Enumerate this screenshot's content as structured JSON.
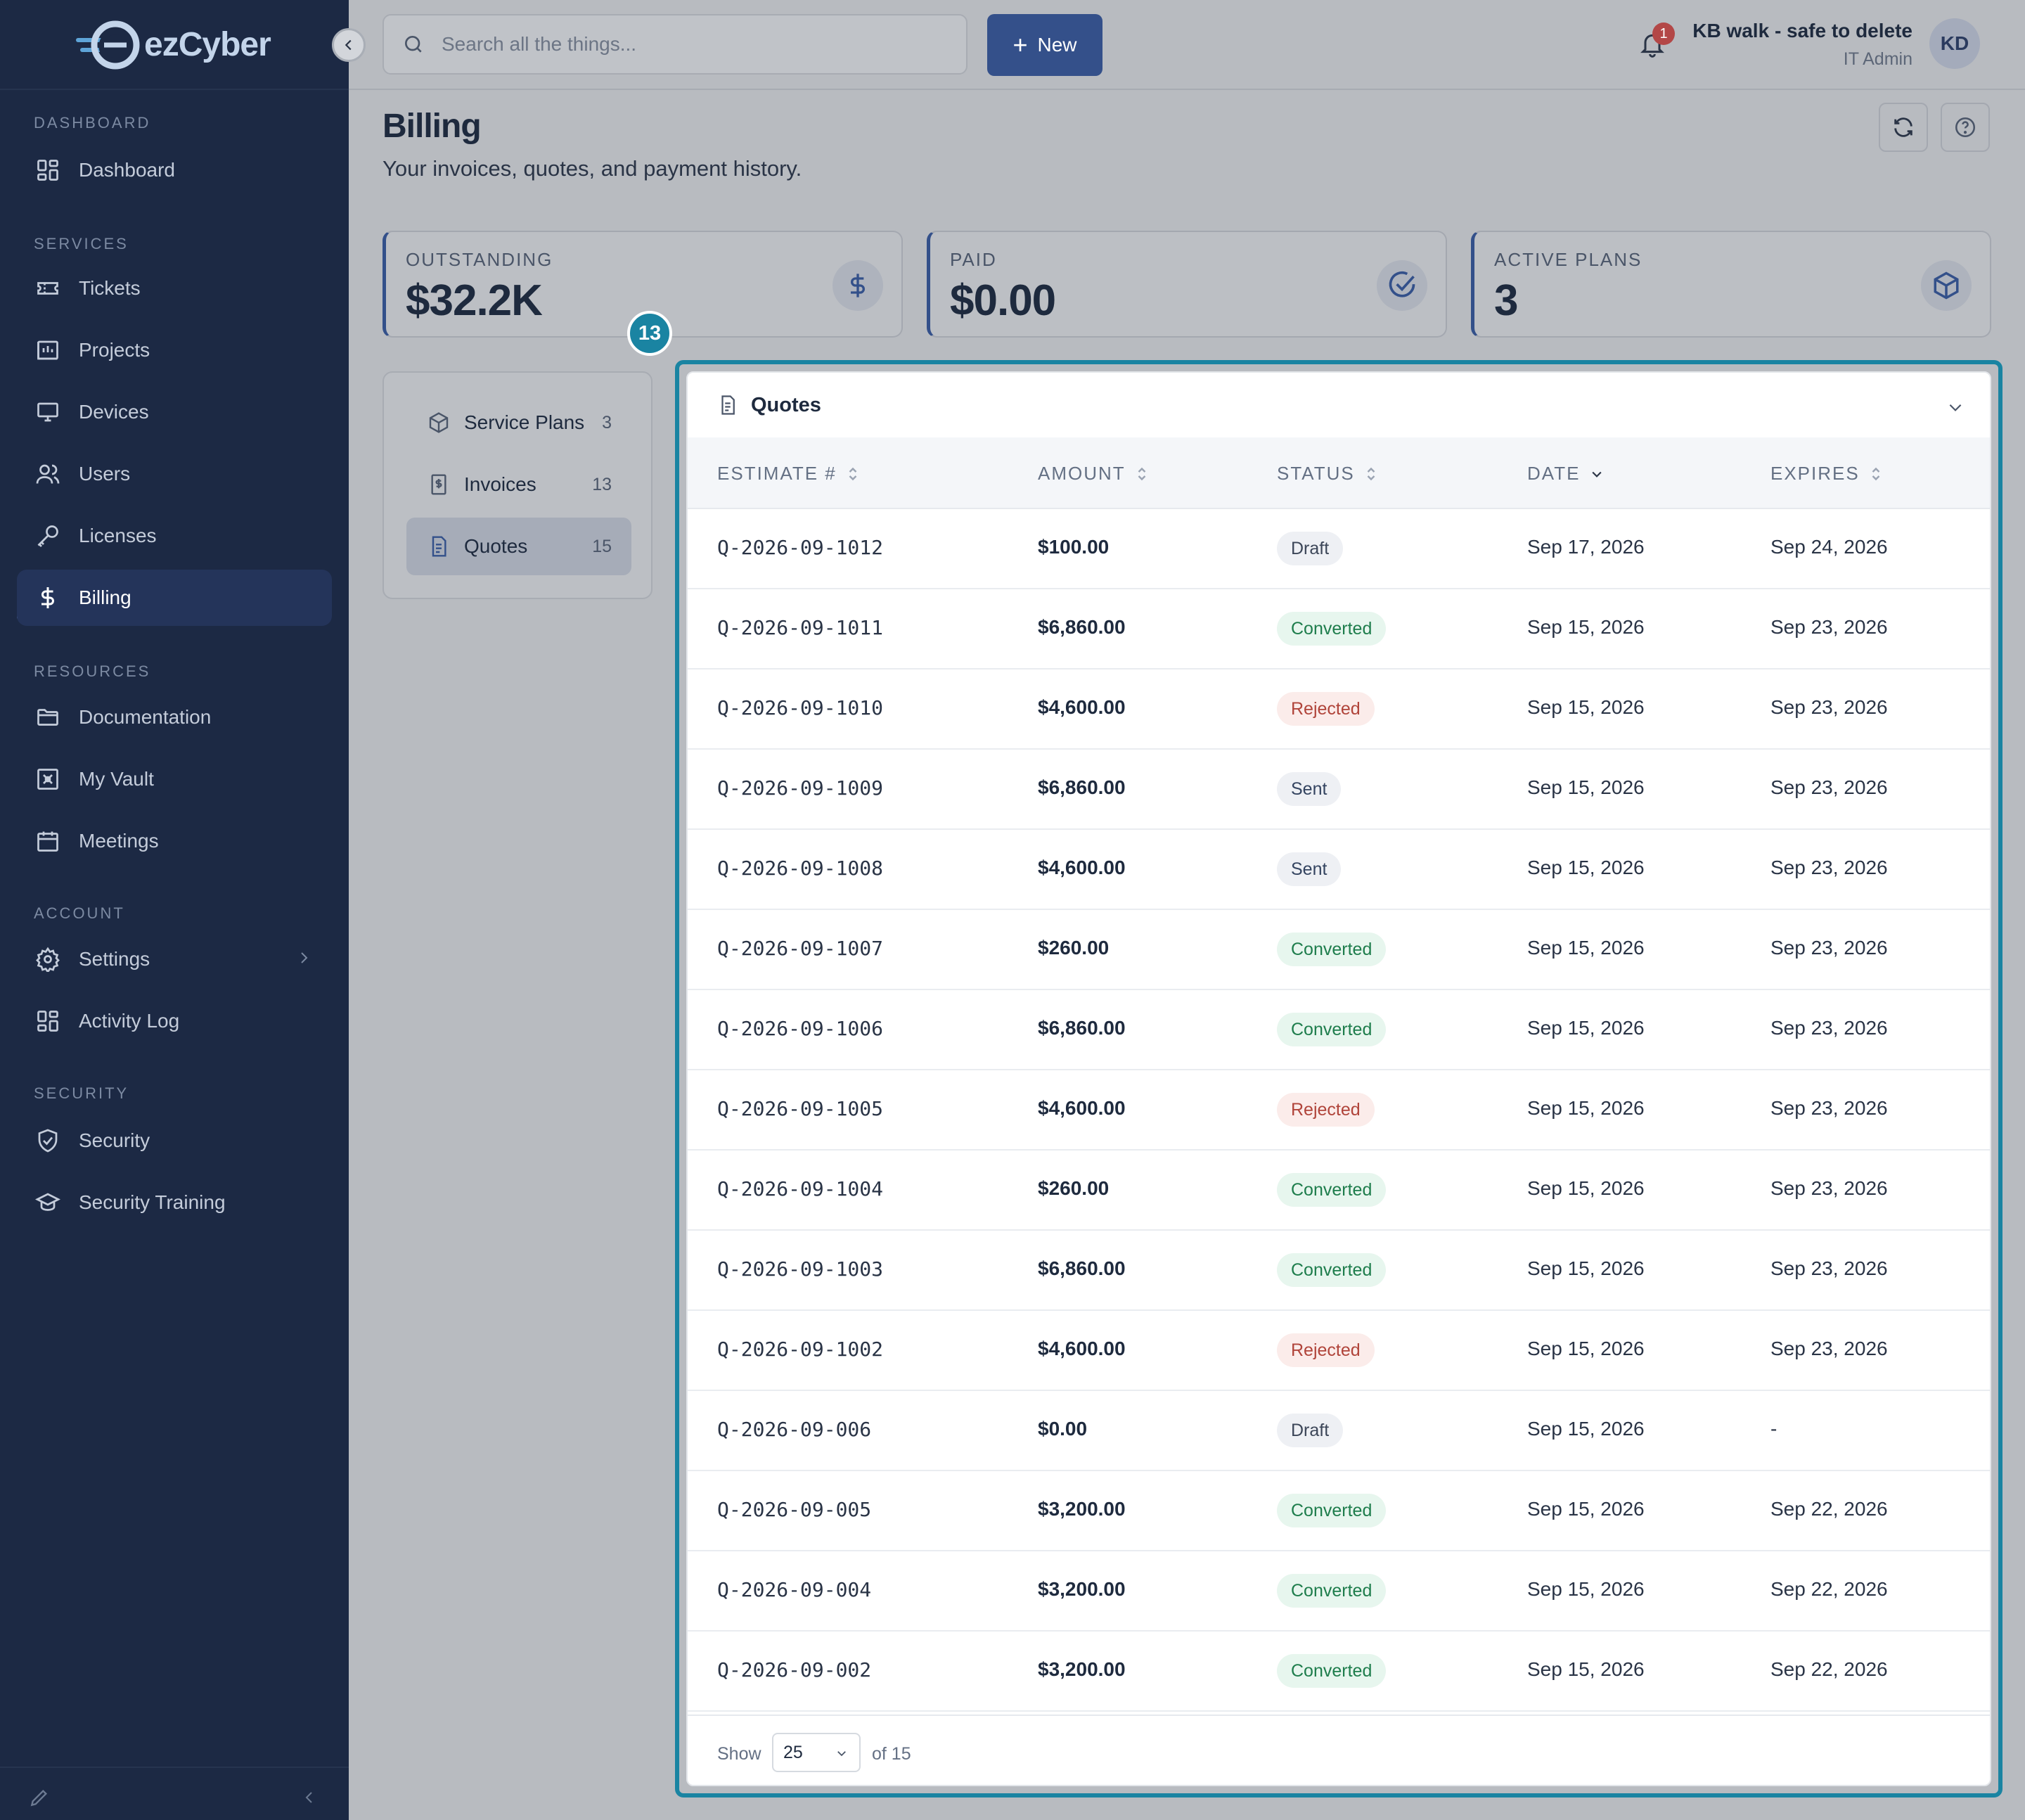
{
  "app": {
    "brand_prefix": "ez",
    "brand_suffix": "Cyber"
  },
  "sidebar": {
    "sections": [
      {
        "label": "DASHBOARD",
        "items": [
          {
            "label": "Dashboard",
            "icon": "layout-grid-icon"
          }
        ]
      },
      {
        "label": "SERVICES",
        "items": [
          {
            "label": "Tickets",
            "icon": "ticket-icon"
          },
          {
            "label": "Projects",
            "icon": "chart-icon"
          },
          {
            "label": "Devices",
            "icon": "monitor-icon"
          },
          {
            "label": "Users",
            "icon": "users-icon"
          },
          {
            "label": "Licenses",
            "icon": "key-icon"
          },
          {
            "label": "Billing",
            "icon": "dollar-icon",
            "active": true
          }
        ]
      },
      {
        "label": "RESOURCES",
        "items": [
          {
            "label": "Documentation",
            "icon": "folder-icon"
          },
          {
            "label": "My Vault",
            "icon": "vault-icon"
          },
          {
            "label": "Meetings",
            "icon": "calendar-icon"
          }
        ]
      },
      {
        "label": "ACCOUNT",
        "items": [
          {
            "label": "Settings",
            "icon": "gear-icon"
          },
          {
            "label": "Activity Log",
            "icon": "layout-grid-icon"
          }
        ]
      },
      {
        "label": "SECURITY",
        "items": [
          {
            "label": "Security",
            "icon": "shield-check-icon"
          },
          {
            "label": "Security Training",
            "icon": "graduation-cap-icon"
          }
        ]
      }
    ]
  },
  "topbar": {
    "search_placeholder": "Search all the things...",
    "new_label": "New",
    "notification_count": "1",
    "user_name": "KB walk - safe to delete",
    "user_role": "IT Admin",
    "avatar_initials": "KD"
  },
  "page": {
    "title": "Billing",
    "subtitle": "Your invoices, quotes, and payment history."
  },
  "stats": [
    {
      "label": "OUTSTANDING",
      "value": "$32.2K",
      "icon": "dollar-icon"
    },
    {
      "label": "PAID",
      "value": "$0.00",
      "icon": "check-circle-icon"
    },
    {
      "label": "ACTIVE PLANS",
      "value": "3",
      "icon": "box-icon"
    }
  ],
  "subnav": [
    {
      "label": "Service Plans",
      "count": "3",
      "icon": "box-icon"
    },
    {
      "label": "Invoices",
      "count": "13",
      "icon": "receipt-icon"
    },
    {
      "label": "Quotes",
      "count": "15",
      "icon": "document-icon",
      "active": true
    }
  ],
  "highlight_badge": "13",
  "quotes": {
    "title": "Quotes",
    "columns": [
      "ESTIMATE #",
      "AMOUNT",
      "STATUS",
      "DATE",
      "EXPIRES"
    ],
    "rows": [
      {
        "estimate": "Q-2026-09-1012",
        "amount": "$100.00",
        "status": "Draft",
        "date": "Sep 17, 2026",
        "expires": "Sep 24, 2026"
      },
      {
        "estimate": "Q-2026-09-1011",
        "amount": "$6,860.00",
        "status": "Converted",
        "date": "Sep 15, 2026",
        "expires": "Sep 23, 2026"
      },
      {
        "estimate": "Q-2026-09-1010",
        "amount": "$4,600.00",
        "status": "Rejected",
        "date": "Sep 15, 2026",
        "expires": "Sep 23, 2026"
      },
      {
        "estimate": "Q-2026-09-1009",
        "amount": "$6,860.00",
        "status": "Sent",
        "date": "Sep 15, 2026",
        "expires": "Sep 23, 2026"
      },
      {
        "estimate": "Q-2026-09-1008",
        "amount": "$4,600.00",
        "status": "Sent",
        "date": "Sep 15, 2026",
        "expires": "Sep 23, 2026"
      },
      {
        "estimate": "Q-2026-09-1007",
        "amount": "$260.00",
        "status": "Converted",
        "date": "Sep 15, 2026",
        "expires": "Sep 23, 2026"
      },
      {
        "estimate": "Q-2026-09-1006",
        "amount": "$6,860.00",
        "status": "Converted",
        "date": "Sep 15, 2026",
        "expires": "Sep 23, 2026"
      },
      {
        "estimate": "Q-2026-09-1005",
        "amount": "$4,600.00",
        "status": "Rejected",
        "date": "Sep 15, 2026",
        "expires": "Sep 23, 2026"
      },
      {
        "estimate": "Q-2026-09-1004",
        "amount": "$260.00",
        "status": "Converted",
        "date": "Sep 15, 2026",
        "expires": "Sep 23, 2026"
      },
      {
        "estimate": "Q-2026-09-1003",
        "amount": "$6,860.00",
        "status": "Converted",
        "date": "Sep 15, 2026",
        "expires": "Sep 23, 2026"
      },
      {
        "estimate": "Q-2026-09-1002",
        "amount": "$4,600.00",
        "status": "Rejected",
        "date": "Sep 15, 2026",
        "expires": "Sep 23, 2026"
      },
      {
        "estimate": "Q-2026-09-006",
        "amount": "$0.00",
        "status": "Draft",
        "date": "Sep 15, 2026",
        "expires": "-"
      },
      {
        "estimate": "Q-2026-09-005",
        "amount": "$3,200.00",
        "status": "Converted",
        "date": "Sep 15, 2026",
        "expires": "Sep 22, 2026"
      },
      {
        "estimate": "Q-2026-09-004",
        "amount": "$3,200.00",
        "status": "Converted",
        "date": "Sep 15, 2026",
        "expires": "Sep 22, 2026"
      },
      {
        "estimate": "Q-2026-09-002",
        "amount": "$3,200.00",
        "status": "Converted",
        "date": "Sep 15, 2026",
        "expires": "Sep 22, 2026"
      }
    ],
    "footer": {
      "show_label": "Show",
      "page_size": "25",
      "of_label": "of 15"
    }
  }
}
